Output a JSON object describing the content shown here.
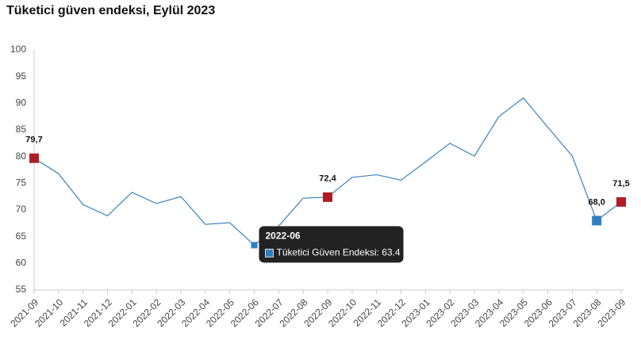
{
  "chart_data": {
    "type": "line",
    "title": "Tüketici güven endeksi, Eylül 2023",
    "categories": [
      "2021-09",
      "2021-10",
      "2021-11",
      "2021-12",
      "2022-01",
      "2022-02",
      "2022-03",
      "2022-04",
      "2022-05",
      "2022-06",
      "2022-07",
      "2022-08",
      "2022-09",
      "2022-10",
      "2022-11",
      "2022-12",
      "2023-01",
      "2023-02",
      "2023-03",
      "2023-04",
      "2023-05",
      "2023-06",
      "2023-07",
      "2023-08",
      "2023-09"
    ],
    "series": [
      {
        "name": "Tüketici Güven Endeksi",
        "color": "#3a84b8",
        "values": [
          79.7,
          76.8,
          71.0,
          68.9,
          73.3,
          71.2,
          72.5,
          67.3,
          67.6,
          63.4,
          67.0,
          72.2,
          72.4,
          76.1,
          76.6,
          75.6,
          79.0,
          82.5,
          80.1,
          87.5,
          91.0,
          85.5,
          80.1,
          68.0,
          71.5
        ],
        "value_labels": [
          "79,7",
          null,
          null,
          null,
          null,
          null,
          null,
          null,
          null,
          null,
          null,
          null,
          "72,4",
          null,
          null,
          null,
          null,
          null,
          null,
          null,
          null,
          null,
          null,
          "68,0",
          "71,5"
        ],
        "marker_colors": [
          "#b01c24",
          null,
          null,
          null,
          null,
          null,
          null,
          null,
          null,
          "#2f7fbf",
          null,
          null,
          "#b01c24",
          null,
          null,
          null,
          null,
          null,
          null,
          null,
          null,
          null,
          null,
          "#2f7fbf",
          "#b01c24"
        ]
      }
    ],
    "ylim": [
      55,
      100
    ],
    "yticks": [
      55,
      60,
      65,
      70,
      75,
      80,
      85,
      90,
      95,
      100
    ],
    "grid": false,
    "tooltip": {
      "title": "2022-06",
      "label": "Tüketici Güven Endeksi: 63.4"
    }
  }
}
